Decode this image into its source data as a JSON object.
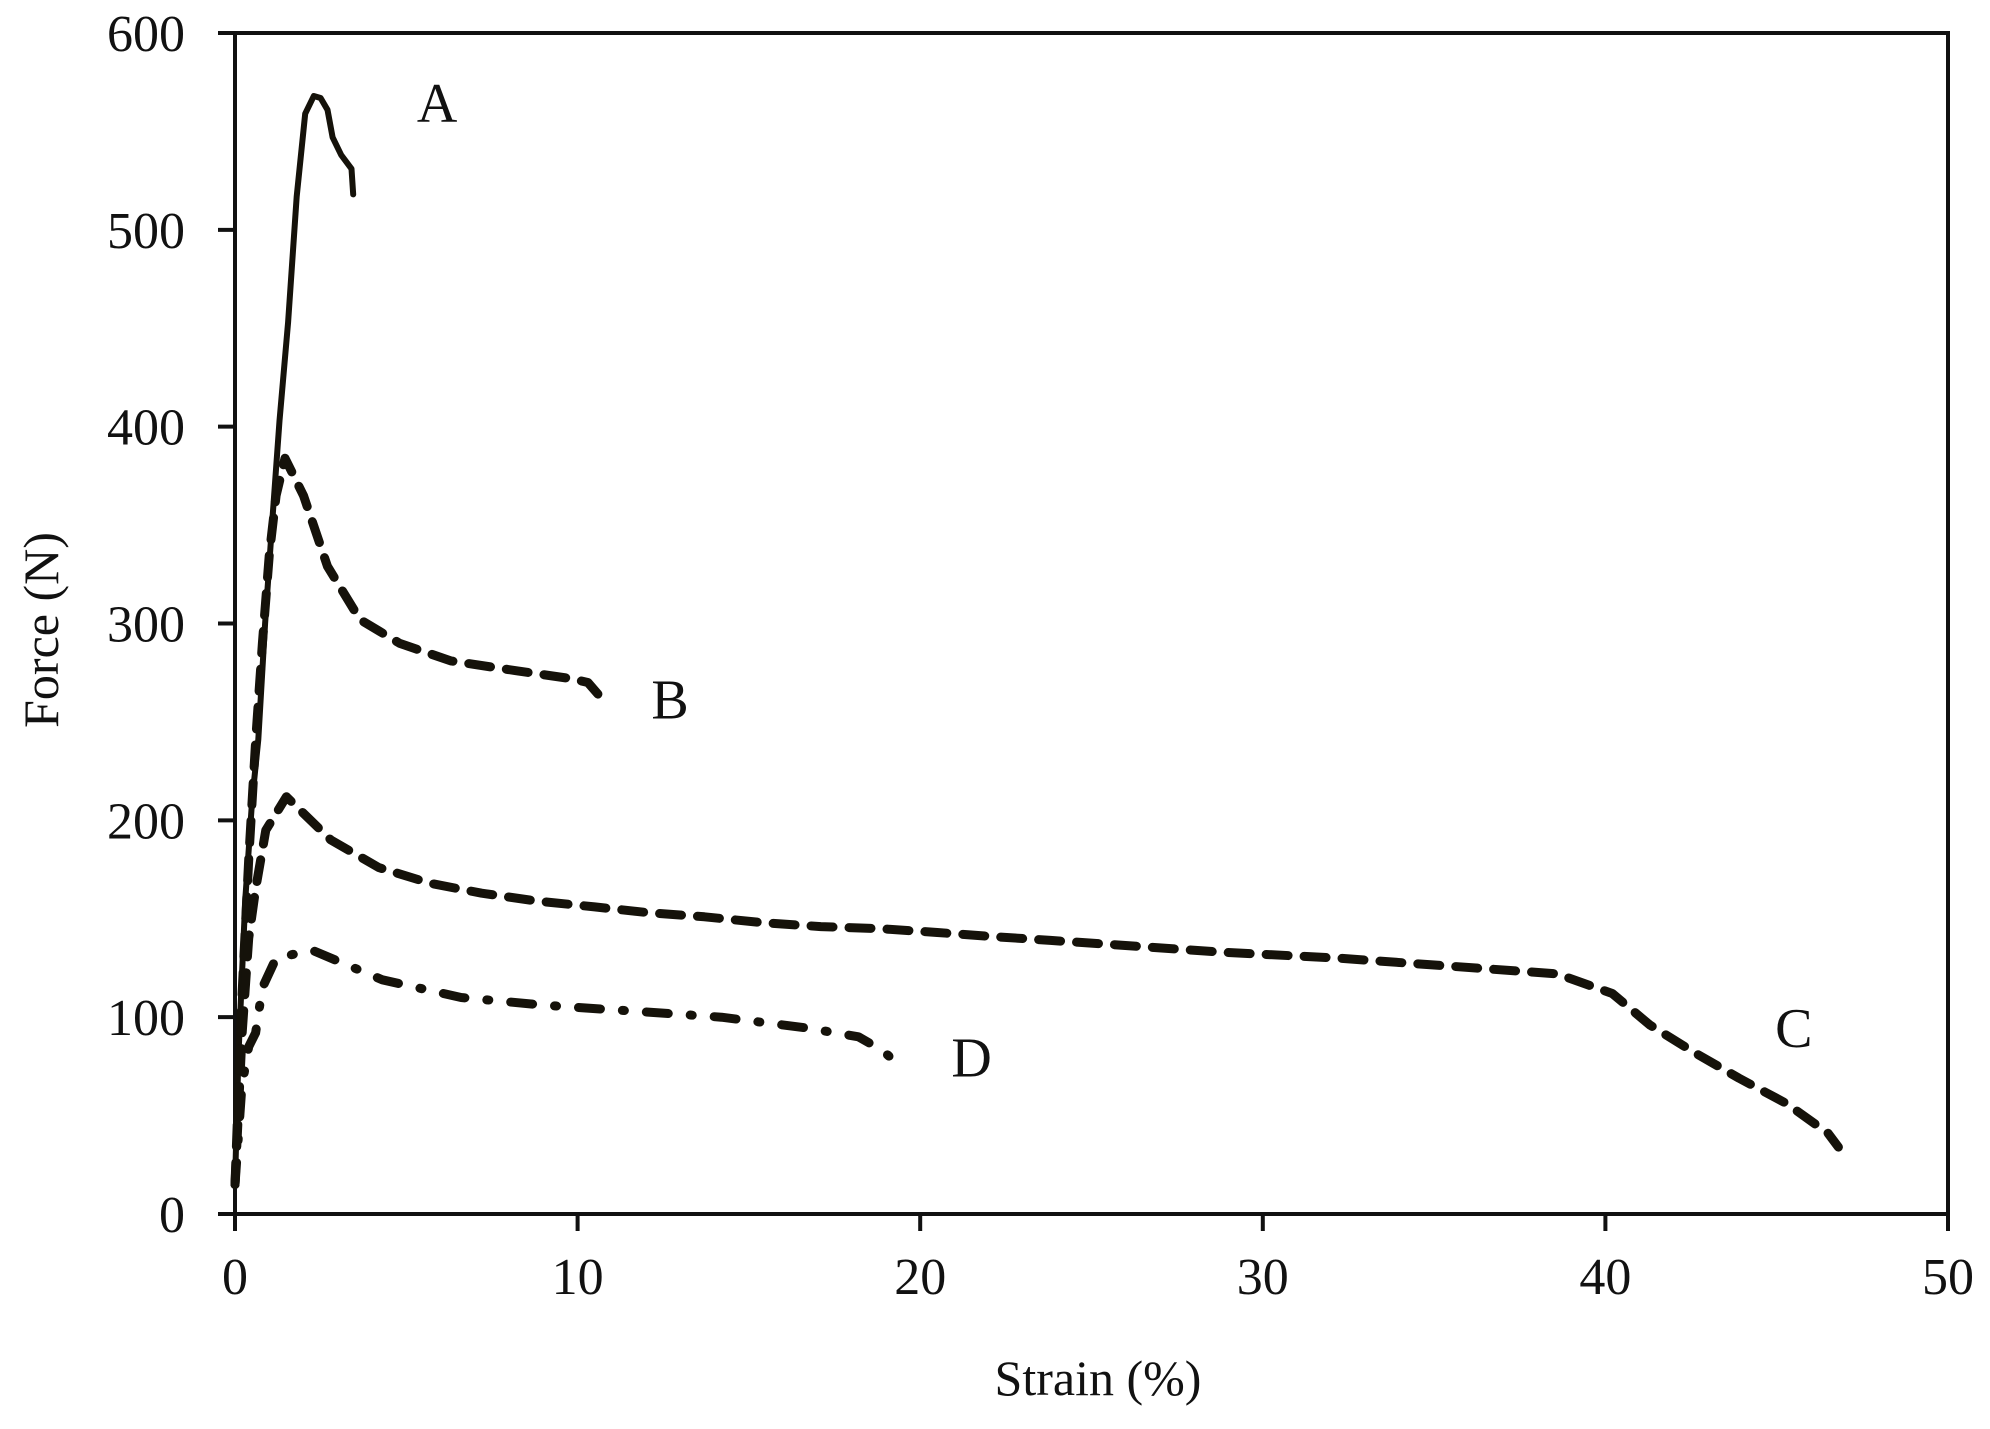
{
  "chart_data": {
    "type": "line",
    "title": "",
    "xlabel": "Strain (%)",
    "ylabel": "Force (N)",
    "xlim": [
      0,
      50
    ],
    "ylim": [
      0,
      600
    ],
    "xticks": [
      0,
      10,
      20,
      30,
      40,
      50
    ],
    "yticks": [
      0,
      100,
      200,
      300,
      400,
      500,
      600
    ],
    "grid": false,
    "legend": "inline labels next to curves",
    "series": [
      {
        "name": "A",
        "style": "solid",
        "label_pos": [
          5.9,
          565
        ],
        "x": [
          0,
          0.1,
          0.3,
          0.5,
          0.68,
          0.88,
          1.1,
          1.3,
          1.55,
          1.8,
          2.05,
          2.3,
          2.5,
          2.7,
          2.85,
          3.1,
          3.4,
          3.45
        ],
        "y": [
          15,
          80,
          160,
          210,
          241,
          300,
          355,
          403,
          453,
          517,
          559,
          568,
          567,
          561,
          547,
          538,
          531,
          518
        ]
      },
      {
        "name": "B",
        "style": "dashed",
        "label_pos": [
          12.7,
          262
        ],
        "x": [
          0,
          0.2,
          0.4,
          0.6,
          0.8,
          1.0,
          1.2,
          1.46,
          2.0,
          2.7,
          3.65,
          4.8,
          6.3,
          8.2,
          9.8,
          10.3,
          10.6
        ],
        "y": [
          15,
          110,
          180,
          240,
          290,
          335,
          365,
          384,
          365,
          329,
          302,
          290,
          281,
          276,
          272,
          270,
          264
        ]
      },
      {
        "name": "C",
        "style": "dashed",
        "label_pos": [
          45.5,
          95
        ],
        "x": [
          0,
          0.2,
          0.4,
          0.6,
          0.9,
          1.5,
          2.8,
          4.2,
          5.7,
          7.2,
          8.8,
          10.5,
          12.1,
          13.7,
          15.4,
          17.1,
          18.8,
          20.5,
          22.1,
          23.8,
          25.5,
          28.8,
          32.2,
          35.4,
          38.6,
          40.2,
          41.3,
          42.6,
          43.9,
          45.3,
          46.5,
          46.8
        ],
        "y": [
          15,
          90,
          140,
          165,
          195,
          212,
          190,
          176,
          168,
          163,
          159,
          156,
          153,
          151,
          148,
          146,
          145,
          143,
          141,
          139,
          137,
          133,
          130,
          126,
          122,
          112,
          96,
          82,
          69,
          56,
          41,
          34
        ]
      },
      {
        "name": "D",
        "style": "dash-dot",
        "label_pos": [
          21.5,
          80
        ],
        "x": [
          0,
          0.2,
          0.4,
          0.6,
          0.8,
          1.2,
          2.25,
          4.3,
          6.6,
          9.1,
          11.7,
          14.2,
          16.7,
          18.2,
          18.9,
          19.1
        ],
        "y": [
          15,
          65,
          85,
          92,
          115,
          130,
          134,
          119,
          110,
          106,
          103,
          100,
          94.5,
          90,
          83,
          80
        ]
      }
    ]
  },
  "axes": {
    "x_title": "Strain (%)",
    "y_title": "Force (N)",
    "x_tick_labels": [
      "0",
      "10",
      "20",
      "30",
      "40",
      "50"
    ],
    "y_tick_labels": [
      "0",
      "100",
      "200",
      "300",
      "400",
      "500",
      "600"
    ]
  },
  "labels": {
    "A": "A",
    "B": "B",
    "C": "C",
    "D": "D"
  },
  "colors": {
    "line": "#15120a",
    "axis": "#111111",
    "background": "#ffffff"
  }
}
